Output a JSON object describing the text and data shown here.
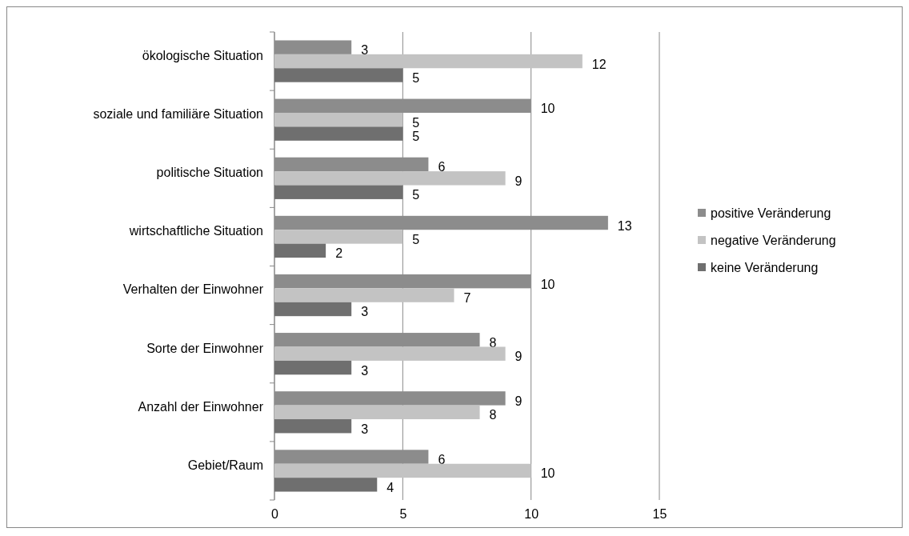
{
  "chart_data": {
    "type": "bar",
    "orientation": "horizontal",
    "categories": [
      "ökologische Situation",
      "soziale und familiäre Situation",
      "politische Situation",
      "wirtschaftliche Situation",
      "Verhalten der Einwohner",
      "Sorte der Einwohner",
      "Anzahl der Einwohner",
      "Gebiet/Raum"
    ],
    "series": [
      {
        "name": "positive Veränderung",
        "color": "#8c8c8c",
        "values": [
          3,
          10,
          6,
          13,
          10,
          8,
          9,
          6
        ]
      },
      {
        "name": "negative Veränderung",
        "color": "#c3c3c3",
        "values": [
          12,
          5,
          9,
          5,
          7,
          9,
          8,
          10
        ]
      },
      {
        "name": "keine Veränderung",
        "color": "#6f6f6f",
        "values": [
          5,
          5,
          5,
          2,
          3,
          3,
          3,
          4
        ]
      }
    ],
    "xlim": [
      0,
      15
    ],
    "xticks": [
      0,
      5,
      10,
      15
    ],
    "grid": "x",
    "legend": "right",
    "data_labels": true
  }
}
